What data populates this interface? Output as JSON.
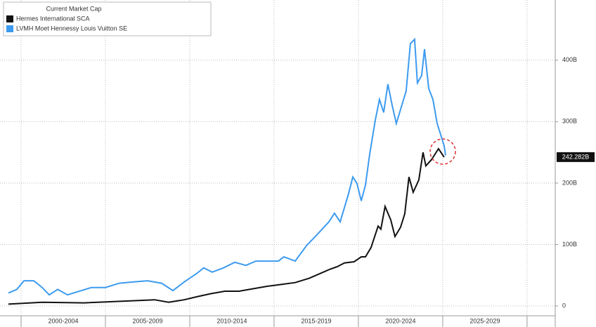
{
  "chart_data": {
    "type": "line",
    "legend_title": "Current Market Cap",
    "legend": "top-left",
    "grid": true,
    "xlim": [
      1998.75,
      2031.67
    ],
    "ylim": [
      -16,
      498
    ],
    "xgrid": [
      2000,
      2005,
      2010,
      2015,
      2020,
      2025,
      2030
    ],
    "xticks": [
      {
        "value": 2002.5,
        "label": "2000-2004"
      },
      {
        "value": 2007.5,
        "label": "2005-2009"
      },
      {
        "value": 2012.5,
        "label": "2010-2014"
      },
      {
        "value": 2017.5,
        "label": "2015-2019"
      },
      {
        "value": 2022.5,
        "label": "2020-2024"
      },
      {
        "value": 2027.5,
        "label": "2025-2029"
      }
    ],
    "yticks": [
      0,
      {
        "value": 100,
        "label": "100B"
      },
      {
        "value": 200,
        "label": "200B"
      },
      {
        "value": 300,
        "label": "300B"
      },
      {
        "value": 400,
        "label": "400B"
      }
    ],
    "series": [
      {
        "name": "Hermes International SCA",
        "color": "#111111",
        "x": [
          1999.25,
          2001.25,
          2003.75,
          2006.25,
          2007.92,
          2008.75,
          2009.67,
          2010.42,
          2011.25,
          2012.08,
          2012.92,
          2013.75,
          2014.58,
          2015.42,
          2016.25,
          2017.08,
          2017.92,
          2018.33,
          2018.75,
          2019.17,
          2019.75,
          2020.17,
          2020.42,
          2020.75,
          2021.17,
          2021.33,
          2021.58,
          2021.92,
          2022.17,
          2022.5,
          2022.75,
          2023.0,
          2023.25,
          2023.58,
          2023.83,
          2024.0,
          2024.33,
          2024.75,
          2025.08
        ],
        "values": [
          3,
          6,
          5,
          8,
          10,
          6,
          10,
          15,
          20,
          24,
          24,
          28,
          32,
          35,
          38,
          45,
          55,
          60,
          64,
          70,
          72,
          80,
          80,
          95,
          130,
          125,
          162,
          140,
          113,
          128,
          150,
          210,
          185,
          205,
          250,
          228,
          238,
          256,
          242.282
        ],
        "value_labels": [
          null,
          null,
          null,
          null,
          null,
          null,
          null,
          null,
          null,
          null,
          null,
          null,
          null,
          null,
          null,
          null,
          null,
          null,
          null,
          null,
          null,
          null,
          null,
          null,
          null,
          null,
          null,
          null,
          null,
          null,
          null,
          null,
          null,
          null,
          null,
          null,
          null,
          null,
          "242.282B"
        ]
      },
      {
        "name": "LVMH Moet Hennessy Louis Vuitton SE",
        "color": "#3d9bef",
        "x": [
          1999.25,
          1999.75,
          2000.17,
          2000.75,
          2001.25,
          2001.67,
          2002.17,
          2002.75,
          2003.33,
          2004.17,
          2005.0,
          2005.83,
          2006.67,
          2007.5,
          2008.33,
          2009.0,
          2009.67,
          2010.42,
          2010.83,
          2011.33,
          2012.0,
          2012.67,
          2013.33,
          2013.92,
          2014.58,
          2015.25,
          2015.58,
          2016.25,
          2016.92,
          2017.58,
          2018.25,
          2018.58,
          2018.92,
          2019.42,
          2019.67,
          2019.92,
          2020.17,
          2020.42,
          2020.67,
          2021.0,
          2021.25,
          2021.5,
          2021.75,
          2022.0,
          2022.25,
          2022.83,
          2023.08,
          2023.33,
          2023.5,
          2023.75,
          2023.92,
          2024.17,
          2024.42,
          2024.67,
          2025.08,
          2025.17
        ],
        "values": [
          21,
          27,
          41,
          41,
          30,
          18,
          27,
          18,
          23,
          30,
          30,
          37,
          39,
          41,
          37,
          25,
          39,
          53,
          62,
          55,
          62,
          71,
          66,
          73,
          73,
          73,
          80,
          73,
          98,
          117,
          137,
          151,
          137,
          183,
          210,
          199,
          171,
          197,
          247,
          302,
          336,
          315,
          361,
          327,
          297,
          350,
          427,
          434,
          363,
          375,
          418,
          354,
          336,
          297,
          261,
          245
        ]
      }
    ]
  }
}
